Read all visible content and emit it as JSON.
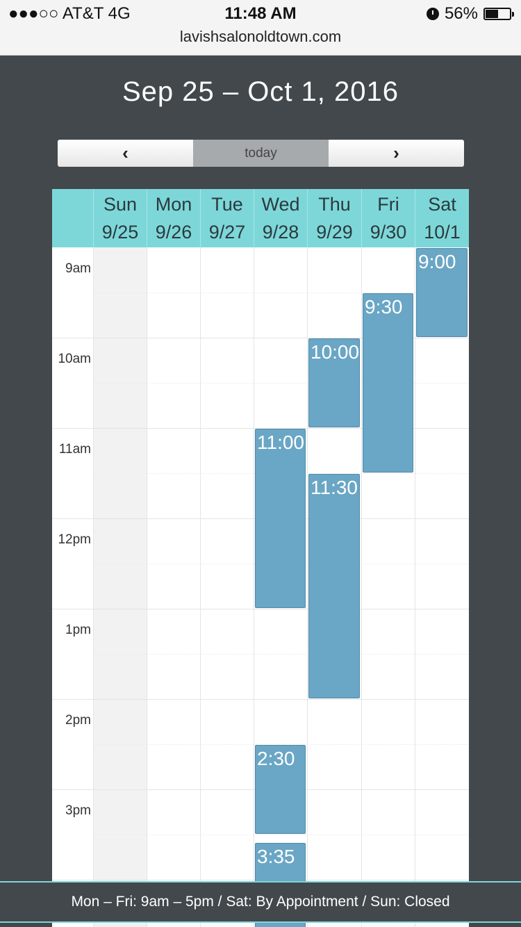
{
  "status_bar": {
    "carrier": "●●●○○ AT&T   4G",
    "time": "11:48 AM",
    "battery": "56%",
    "battery_level": 0.56,
    "url": "lavishsalonoldtown.com"
  },
  "title": "Sep 25 – Oct 1, 2016",
  "toolbar": {
    "prev": "‹",
    "today": "today",
    "next": "›"
  },
  "days": [
    {
      "name": "Sun",
      "date": "9/25"
    },
    {
      "name": "Mon",
      "date": "9/26"
    },
    {
      "name": "Tue",
      "date": "9/27"
    },
    {
      "name": "Wed",
      "date": "9/28"
    },
    {
      "name": "Thu",
      "date": "9/29"
    },
    {
      "name": "Fri",
      "date": "9/30"
    },
    {
      "name": "Sat",
      "date": "10/1"
    }
  ],
  "time_labels": [
    "9am",
    "10am",
    "11am",
    "12pm",
    "1pm",
    "2pm",
    "3pm"
  ],
  "events": [
    {
      "day": 6,
      "start": "9:00",
      "label": "9:00"
    },
    {
      "day": 5,
      "start": "9:30",
      "label": "9:30"
    },
    {
      "day": 4,
      "start": "10:00",
      "label": "10:00"
    },
    {
      "day": 3,
      "start": "11:00",
      "label": "11:00"
    },
    {
      "day": 4,
      "start": "11:30",
      "label": "11:30"
    },
    {
      "day": 3,
      "start": "14:30",
      "label": "2:30"
    },
    {
      "day": 3,
      "start": "15:35",
      "label": "3:35"
    }
  ],
  "footer": "Mon – Fri: 9am – 5pm / Sat: By Appointment / Sun: Closed",
  "colors": {
    "header": "#7dd7d8",
    "event": "#6aa6c5",
    "background": "#42484c"
  }
}
